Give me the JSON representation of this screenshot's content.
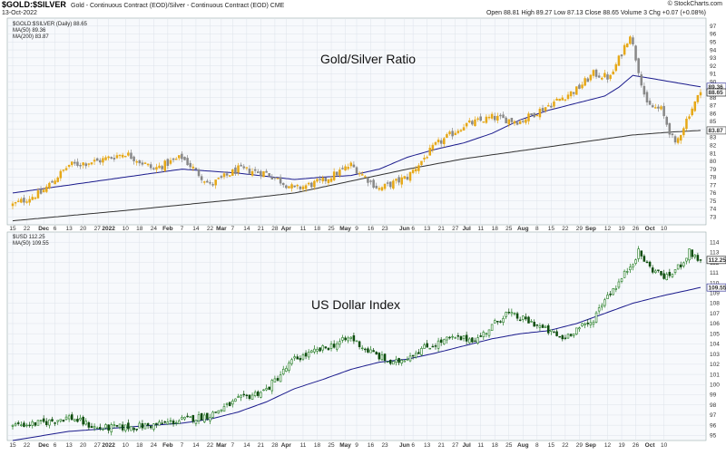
{
  "header": {
    "symbol": "$GOLD:$SILVER",
    "description": "Gold - Continuous Contract (EOD)/Silver - Continuous Contract (EOD)  CME",
    "date": "13-Oct-2022",
    "quote": "Open 88.81  High 89.27  Low 87.13  Close 88.65  Volume 3  Chg +0.07 (+0.08%)",
    "copyright": "© StockCharts.com"
  },
  "chart_data": [
    {
      "type": "candlestick",
      "annotation": "Gold/Silver Ratio",
      "legend": [
        "$GOLD:$SILVER (Daily) 88.65",
        "MA(50) 89.36",
        "MA(200) 83.87"
      ],
      "series_names": [
        "$GOLD:$SILVER",
        "MA(50)",
        "MA(200)"
      ],
      "ylim": [
        72,
        98
      ],
      "yticks": [
        73,
        74,
        75,
        76,
        77,
        78,
        79,
        80,
        81,
        82,
        83,
        84,
        85,
        86,
        87,
        88,
        89,
        90,
        91,
        92,
        93,
        94,
        95,
        96,
        97
      ],
      "price_tags": [
        {
          "label": "89.36",
          "value": 89.36,
          "color": "#1a1a8c"
        },
        {
          "label": "88.65",
          "value": 88.65,
          "color": "#000000"
        },
        {
          "label": "83.87",
          "value": 83.87,
          "color": "#333333"
        }
      ],
      "colors": {
        "up": "#e6a817",
        "down": "#888888",
        "ma50": "#1a1a8c",
        "ma200": "#333333"
      },
      "x_count": 245,
      "close_anchors": [
        [
          0,
          74.5
        ],
        [
          10,
          76
        ],
        [
          20,
          79.5
        ],
        [
          30,
          80
        ],
        [
          40,
          81
        ],
        [
          50,
          79
        ],
        [
          60,
          80.5
        ],
        [
          70,
          77
        ],
        [
          80,
          79
        ],
        [
          90,
          78.5
        ],
        [
          100,
          76.5
        ],
        [
          110,
          77.5
        ],
        [
          120,
          79.5
        ],
        [
          130,
          76.5
        ],
        [
          140,
          78
        ],
        [
          150,
          82
        ],
        [
          160,
          84.5
        ],
        [
          170,
          85.5
        ],
        [
          180,
          85
        ],
        [
          190,
          87
        ],
        [
          200,
          89
        ],
        [
          206,
          91
        ],
        [
          212,
          90.5
        ],
        [
          219,
          96
        ],
        [
          225,
          87
        ],
        [
          230,
          86.5
        ],
        [
          235,
          82
        ],
        [
          240,
          86
        ],
        [
          244,
          88.65
        ]
      ],
      "ma50_anchors": [
        [
          0,
          76
        ],
        [
          20,
          77
        ],
        [
          40,
          78
        ],
        [
          60,
          79
        ],
        [
          80,
          78.5
        ],
        [
          100,
          77.7
        ],
        [
          110,
          78
        ],
        [
          120,
          78.2
        ],
        [
          130,
          79
        ],
        [
          140,
          80.5
        ],
        [
          150,
          81.5
        ],
        [
          160,
          82.3
        ],
        [
          170,
          83.5
        ],
        [
          180,
          85.2
        ],
        [
          190,
          86.4
        ],
        [
          200,
          87.3
        ],
        [
          210,
          88.2
        ],
        [
          215,
          89.3
        ],
        [
          220,
          90.8
        ],
        [
          230,
          90.2
        ],
        [
          244,
          89.36
        ]
      ],
      "ma200_anchors": [
        [
          0,
          72.5
        ],
        [
          40,
          73.8
        ],
        [
          80,
          75.2
        ],
        [
          100,
          76
        ],
        [
          120,
          77.5
        ],
        [
          140,
          79
        ],
        [
          160,
          80.3
        ],
        [
          180,
          81.3
        ],
        [
          200,
          82.3
        ],
        [
          220,
          83.3
        ],
        [
          235,
          83.7
        ],
        [
          244,
          83.87
        ]
      ]
    },
    {
      "type": "candlestick",
      "annotation": "US Dollar Index",
      "legend": [
        "$USD 112.25",
        "MA(50) 109.55"
      ],
      "series_names": [
        "$USD",
        "MA(50)"
      ],
      "ylim": [
        94.5,
        115
      ],
      "yticks": [
        95,
        96,
        97,
        98,
        99,
        100,
        101,
        102,
        103,
        104,
        105,
        106,
        107,
        108,
        109,
        110,
        111,
        112,
        113,
        114
      ],
      "price_tags": [
        {
          "label": "112.25",
          "value": 112.25,
          "color": "#000000"
        },
        {
          "label": "109.55",
          "value": 109.55,
          "color": "#1a1a8c"
        }
      ],
      "colors": {
        "up": "#1f7a1f",
        "down": "#0d4d0d",
        "ma50": "#1a1a8c"
      },
      "x_count": 245,
      "close_anchors": [
        [
          0,
          96
        ],
        [
          10,
          96.2
        ],
        [
          20,
          96.8
        ],
        [
          30,
          95.7
        ],
        [
          40,
          95.8
        ],
        [
          50,
          96
        ],
        [
          60,
          96.5
        ],
        [
          70,
          97
        ],
        [
          80,
          98.5
        ],
        [
          90,
          99.5
        ],
        [
          100,
          102.5
        ],
        [
          110,
          103.5
        ],
        [
          120,
          104.6
        ],
        [
          125,
          103.5
        ],
        [
          135,
          102
        ],
        [
          145,
          103.5
        ],
        [
          155,
          104.5
        ],
        [
          165,
          104.5
        ],
        [
          175,
          107
        ],
        [
          185,
          106
        ],
        [
          195,
          104.5
        ],
        [
          200,
          105.5
        ],
        [
          205,
          106
        ],
        [
          210,
          108.5
        ],
        [
          215,
          110
        ],
        [
          222,
          113
        ],
        [
          226,
          111.5
        ],
        [
          232,
          110.5
        ],
        [
          236,
          111.5
        ],
        [
          240,
          113
        ],
        [
          244,
          112.25
        ]
      ],
      "ma50_anchors": [
        [
          0,
          94.5
        ],
        [
          20,
          95.4
        ],
        [
          40,
          95.8
        ],
        [
          60,
          96.2
        ],
        [
          70,
          96.6
        ],
        [
          80,
          97.3
        ],
        [
          90,
          98.3
        ],
        [
          100,
          99.6
        ],
        [
          110,
          100.5
        ],
        [
          120,
          101.5
        ],
        [
          130,
          102.2
        ],
        [
          140,
          102.5
        ],
        [
          150,
          103.1
        ],
        [
          160,
          103.8
        ],
        [
          170,
          104.5
        ],
        [
          180,
          105
        ],
        [
          190,
          105.3
        ],
        [
          200,
          106
        ],
        [
          210,
          107
        ],
        [
          220,
          108
        ],
        [
          230,
          108.7
        ],
        [
          244,
          109.55
        ]
      ]
    }
  ],
  "x_axis": {
    "labels": [
      {
        "text": "15",
        "i": 0
      },
      {
        "text": "22",
        "i": 5
      },
      {
        "text": "Dec",
        "i": 11
      },
      {
        "text": "6",
        "i": 15
      },
      {
        "text": "13",
        "i": 20
      },
      {
        "text": "20",
        "i": 25
      },
      {
        "text": "27",
        "i": 30
      },
      {
        "text": "2022",
        "i": 34
      },
      {
        "text": "10",
        "i": 40
      },
      {
        "text": "18",
        "i": 45
      },
      {
        "text": "24",
        "i": 50
      },
      {
        "text": "Feb",
        "i": 55
      },
      {
        "text": "7",
        "i": 60
      },
      {
        "text": "14",
        "i": 65
      },
      {
        "text": "22",
        "i": 70
      },
      {
        "text": "Mar",
        "i": 74
      },
      {
        "text": "7",
        "i": 78
      },
      {
        "text": "14",
        "i": 83
      },
      {
        "text": "21",
        "i": 88
      },
      {
        "text": "28",
        "i": 93
      },
      {
        "text": "Apr",
        "i": 97
      },
      {
        "text": "11",
        "i": 103
      },
      {
        "text": "18",
        "i": 108
      },
      {
        "text": "25",
        "i": 113
      },
      {
        "text": "May",
        "i": 118
      },
      {
        "text": "9",
        "i": 122
      },
      {
        "text": "16",
        "i": 127
      },
      {
        "text": "23",
        "i": 132
      },
      {
        "text": "Jun",
        "i": 139
      },
      {
        "text": "6",
        "i": 142
      },
      {
        "text": "13",
        "i": 147
      },
      {
        "text": "21",
        "i": 152
      },
      {
        "text": "27",
        "i": 157
      },
      {
        "text": "Jul",
        "i": 161
      },
      {
        "text": "11",
        "i": 166
      },
      {
        "text": "18",
        "i": 171
      },
      {
        "text": "25",
        "i": 176
      },
      {
        "text": "Aug",
        "i": 181
      },
      {
        "text": "8",
        "i": 186
      },
      {
        "text": "15",
        "i": 191
      },
      {
        "text": "22",
        "i": 196
      },
      {
        "text": "29",
        "i": 201
      },
      {
        "text": "Sep",
        "i": 205
      },
      {
        "text": "12",
        "i": 211
      },
      {
        "text": "19",
        "i": 216
      },
      {
        "text": "26",
        "i": 221
      },
      {
        "text": "Oct",
        "i": 226
      },
      {
        "text": "10",
        "i": 231
      }
    ]
  }
}
